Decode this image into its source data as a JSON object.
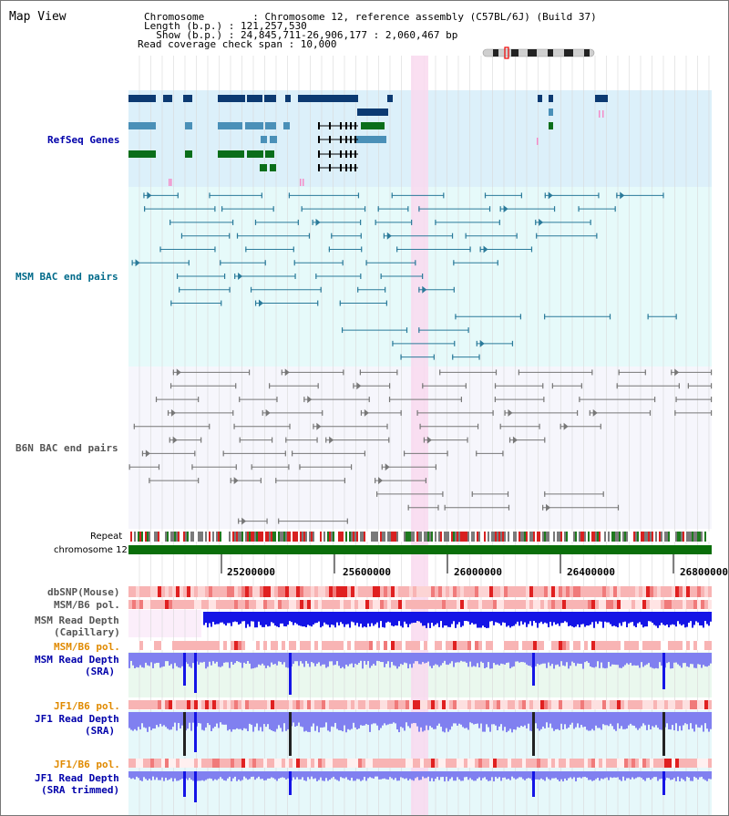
{
  "header": {
    "view_title": "Map View",
    "info_lines": [
      "Chromosome        : Chromosome 12, reference assembly (C57BL/6J) (Build 37)",
      "Length (b.p.) : 121,257,530",
      "  Show (b.p.) : 24,845,711-26,906,177 : 2,060,467 bp",
      "Read coverage check span : 10,000"
    ]
  },
  "tracks": {
    "refseq_label": "RefSeq Genes",
    "msm_bac_label": "MSM BAC end pairs",
    "b6n_bac_label": "B6N BAC end pairs",
    "repeat_label": "Repeat",
    "chromosome_label": "chromosome 12",
    "dbsnp_label": "dbSNP(Mouse)",
    "msm_b6_pol_label": "MSM/B6 pol.",
    "msm_depth_cap_label": [
      "MSM Read Depth",
      "(Capillary)"
    ],
    "msm_b6_pol2_label": "MSM/B6 pol.",
    "msm_depth_sra_label": [
      "MSM Read Depth",
      "(SRA)"
    ],
    "jf1_b6_pol_label": "JF1/B6 pol.",
    "jf1_depth_sra_label": [
      "JF1 Read Depth",
      "(SRA)"
    ],
    "jf1_b6_pol2_label": "JF1/B6 pol.",
    "jf1_depth_trim_label": [
      "JF1 Read Depth",
      "(SRA trimmed)"
    ]
  },
  "axis": {
    "ticks": [
      "25200000",
      "25600000",
      "26000000",
      "26400000",
      "26800000"
    ]
  },
  "colors": {
    "refseq_bg": "#dcf0fa",
    "msm_bg": "#e6fafa",
    "b6n_bg": "#f6f6fc",
    "highlight": "#f9d9ef",
    "gene_dark": "#0c3a72",
    "gene_mid": "#4a90b8",
    "gene_green": "#0a6e1a",
    "msm_line": "#2a7a9a",
    "b6n_line": "#777777",
    "chrom_bar": "#0a6e0a",
    "blue_label": "#0000aa",
    "teal_label": "#006a8a",
    "gray_label": "#555555",
    "orange_label": "#e08a00",
    "depth_blue": "#1515e6",
    "depth_light": "#8080f0"
  }
}
